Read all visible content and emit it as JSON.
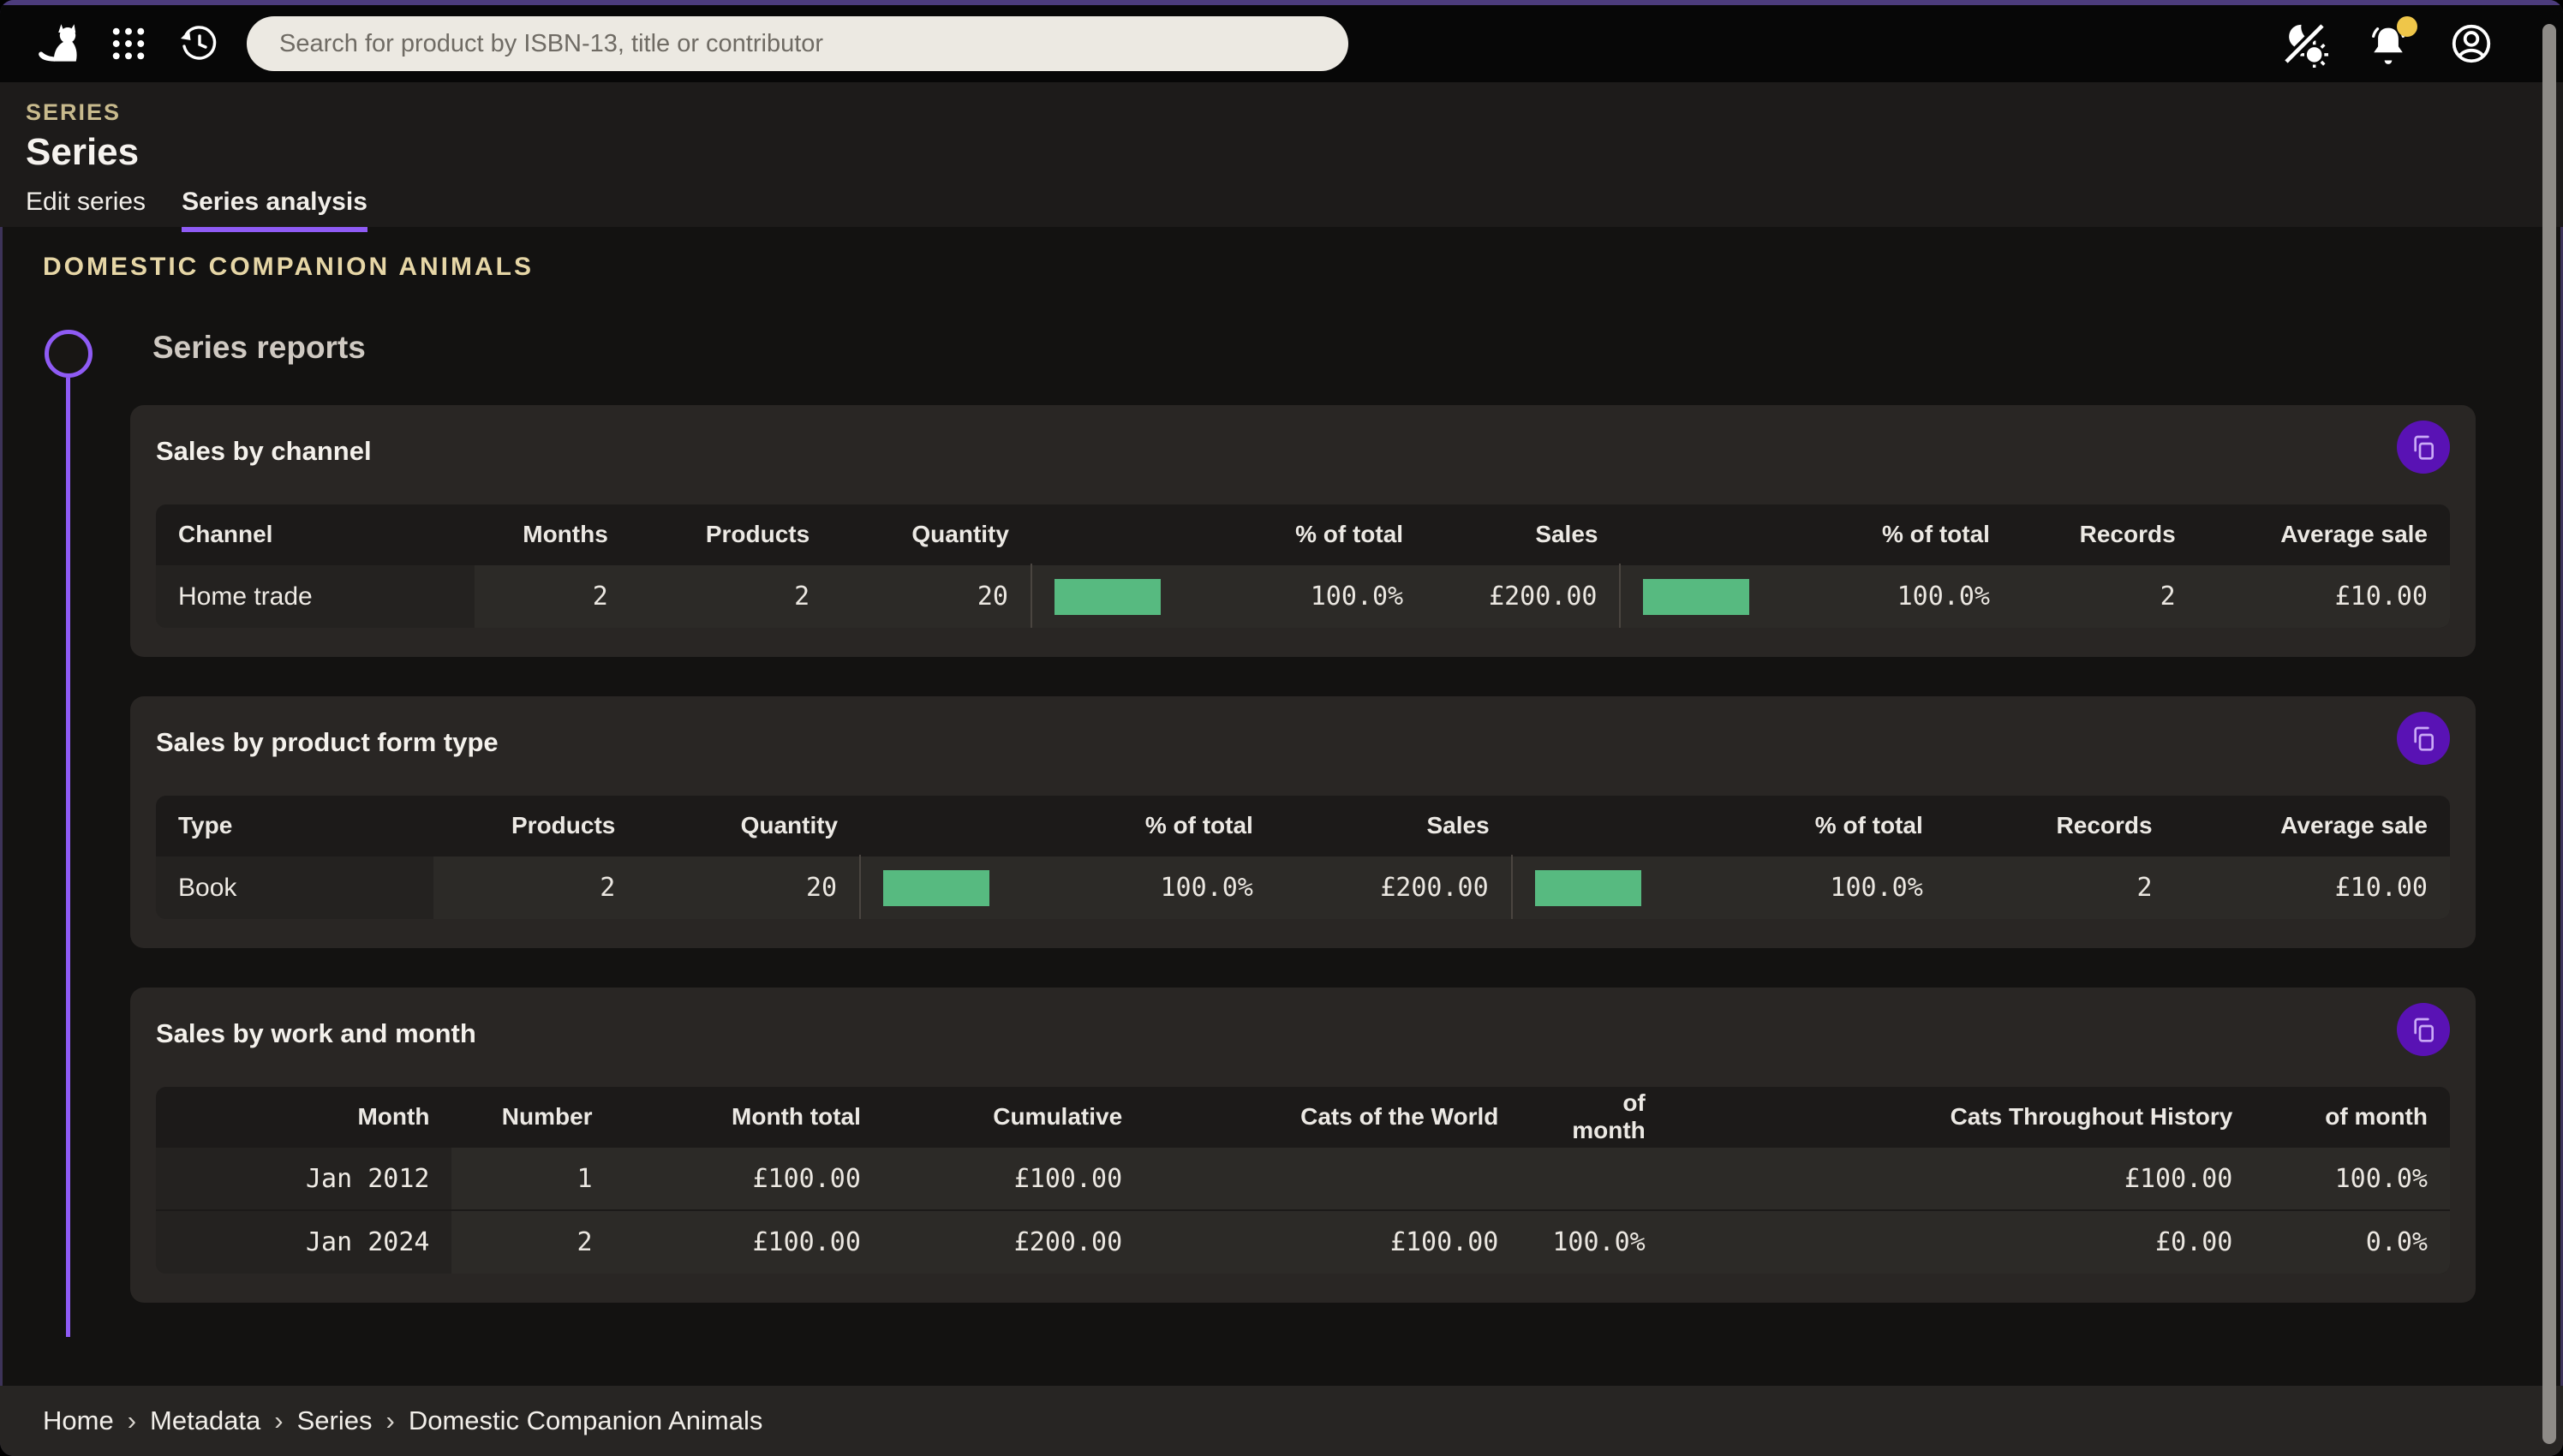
{
  "topbar": {
    "search": {
      "placeholder": "Search for product by ISBN-13, title or contributor",
      "value": ""
    }
  },
  "page_header": {
    "eyebrow": "SERIES",
    "title": "Series",
    "tabs": [
      {
        "label": "Edit series",
        "active": false
      },
      {
        "label": "Series analysis",
        "active": true
      }
    ]
  },
  "content": {
    "series_name": "DOMESTIC COMPANION ANIMALS",
    "section_title": "Series reports"
  },
  "colors": {
    "accent_purple": "#8F5BF5",
    "bar_green": "#57BA80",
    "copy_button_purple": "#5912B4",
    "notification_badge_yellow": "#EFC649"
  },
  "reports": [
    {
      "title": "Sales by channel",
      "copy_icon": "copy-icon",
      "row_header_mono": false,
      "columns": [
        {
          "label": "Channel",
          "align": "left",
          "width": "13.9%"
        },
        {
          "label": "Months",
          "align": "right",
          "width": "6.8%"
        },
        {
          "label": "Products",
          "align": "right",
          "width": "8.8%"
        },
        {
          "label": "Quantity",
          "align": "right",
          "width": "8.7%"
        },
        {
          "label": "% of total",
          "align": "right",
          "width": "17.2%",
          "bar": true
        },
        {
          "label": "Sales",
          "align": "right",
          "width": "8.5%"
        },
        {
          "label": "% of total",
          "align": "right",
          "width": "17.1%",
          "bar": true
        },
        {
          "label": "Records",
          "align": "right",
          "width": "8.1%"
        },
        {
          "label": "Average sale",
          "align": "right",
          "width": "11.0%"
        }
      ],
      "rows": [
        {
          "header": "Home trade",
          "cells": [
            {
              "text": "2"
            },
            {
              "text": "2"
            },
            {
              "text": "20"
            },
            {
              "text": "100.0%",
              "bar_pct": 100
            },
            {
              "text": "£200.00"
            },
            {
              "text": "100.0%",
              "bar_pct": 100
            },
            {
              "text": "2"
            },
            {
              "text": "£10.00"
            }
          ]
        }
      ]
    },
    {
      "title": "Sales by product form type",
      "copy_icon": "copy-icon",
      "row_header_mono": false,
      "columns": [
        {
          "label": "Type",
          "align": "left",
          "width": "12.1%"
        },
        {
          "label": "Products",
          "align": "right",
          "width": "8.9%"
        },
        {
          "label": "Quantity",
          "align": "right",
          "width": "9.7%"
        },
        {
          "label": "% of total",
          "align": "right",
          "width": "18.1%",
          "bar": true
        },
        {
          "label": "Sales",
          "align": "right",
          "width": "10.3%"
        },
        {
          "label": "% of total",
          "align": "right",
          "width": "18.9%",
          "bar": true
        },
        {
          "label": "Records",
          "align": "right",
          "width": "10.0%"
        },
        {
          "label": "Average sale",
          "align": "right",
          "width": "12.0%"
        }
      ],
      "rows": [
        {
          "header": "Book",
          "cells": [
            {
              "text": "2"
            },
            {
              "text": "20"
            },
            {
              "text": "100.0%",
              "bar_pct": 100
            },
            {
              "text": "£200.00"
            },
            {
              "text": "100.0%",
              "bar_pct": 100
            },
            {
              "text": "2"
            },
            {
              "text": "£10.00"
            }
          ]
        }
      ]
    },
    {
      "title": "Sales by work and month",
      "copy_icon": "copy-icon",
      "row_header_mono": true,
      "columns": [
        {
          "label": "Month",
          "align": "right",
          "width": "12.9%"
        },
        {
          "label": "Number",
          "align": "right",
          "width": "7.1%"
        },
        {
          "label": "Month total",
          "align": "right",
          "width": "11.7%"
        },
        {
          "label": "Cumulative",
          "align": "right",
          "width": "11.4%"
        },
        {
          "label": "Cats of the World",
          "align": "right",
          "width": "16.4%"
        },
        {
          "label": "of month",
          "align": "right",
          "width": "6.4%"
        },
        {
          "label": "Cats Throughout History",
          "align": "right",
          "width": "25.6%"
        },
        {
          "label": "of month",
          "align": "right",
          "width": "8.5%"
        }
      ],
      "rows": [
        {
          "header": "Jan 2012",
          "cells": [
            {
              "text": "1"
            },
            {
              "text": "£100.00"
            },
            {
              "text": "£100.00"
            },
            {
              "text": ""
            },
            {
              "text": ""
            },
            {
              "text": "£100.00"
            },
            {
              "text": "100.0%"
            }
          ]
        },
        {
          "header": "Jan 2024",
          "cells": [
            {
              "text": "2"
            },
            {
              "text": "£100.00"
            },
            {
              "text": "£200.00"
            },
            {
              "text": "£100.00"
            },
            {
              "text": "100.0%"
            },
            {
              "text": "£0.00"
            },
            {
              "text": "0.0%"
            }
          ]
        }
      ]
    }
  ],
  "breadcrumb": {
    "items": [
      "Home",
      "Metadata",
      "Series",
      "Domestic Companion Animals"
    ],
    "separator": "›"
  }
}
